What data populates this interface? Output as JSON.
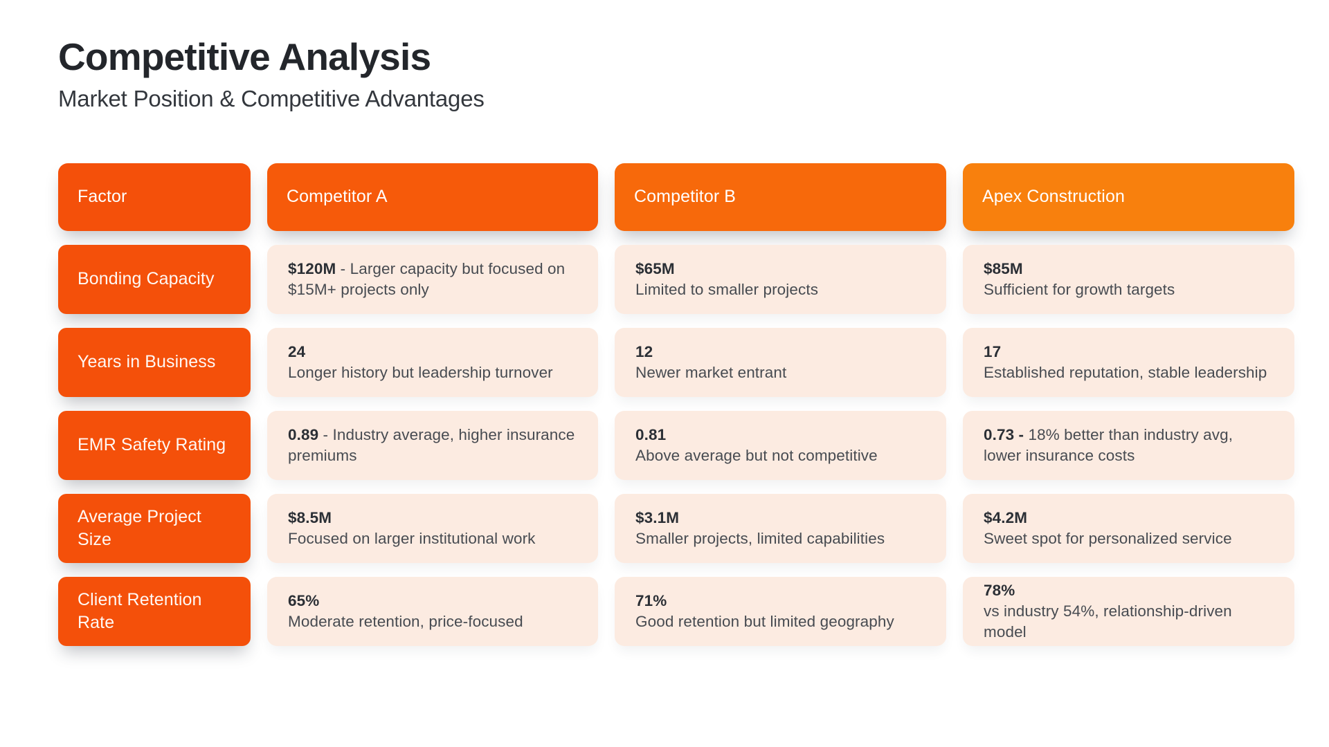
{
  "page": {
    "title": "Competitive Analysis",
    "subtitle": "Market Position & Competitive Advantages"
  },
  "colors": {
    "factor_pill": "#f4500a",
    "cell_bg": "#fcebe1",
    "header_text": "#ffffff"
  },
  "table": {
    "columns": [
      {
        "label": "Factor",
        "color": "#f4500a"
      },
      {
        "label": "Competitor A",
        "color": "#f65a0a"
      },
      {
        "label": "Competitor B",
        "color": "#f7690b"
      },
      {
        "label": "Apex Construction",
        "color": "#f8800d"
      }
    ],
    "rows": [
      {
        "factor": "Bonding Capacity",
        "cells": [
          {
            "value": "$120M",
            "sep": " - ",
            "desc": "Larger capacity but focused on $15M+ projects only"
          },
          {
            "value": "$65M",
            "desc": "Limited to smaller projects"
          },
          {
            "value": "$85M",
            "desc": "Sufficient for growth targets"
          }
        ]
      },
      {
        "factor": "Years in Business",
        "cells": [
          {
            "value": "24",
            "desc": "Longer history but leadership turnover"
          },
          {
            "value": "12",
            "desc": "Newer market entrant"
          },
          {
            "value": "17",
            "desc": "Established reputation, stable leadership"
          }
        ]
      },
      {
        "factor": "EMR Safety Rating",
        "cells": [
          {
            "value": "0.89",
            "sep": " - ",
            "desc": "Industry average, higher insurance premiums"
          },
          {
            "value": "0.81",
            "desc": "Above average but not competitive"
          },
          {
            "value": "0.73 -",
            "sep": " ",
            "desc": "18% better than industry avg, lower insurance costs"
          }
        ]
      },
      {
        "factor": "Average Project Size",
        "cells": [
          {
            "value": "$8.5M",
            "desc": "Focused on larger institutional work"
          },
          {
            "value": "$3.1M",
            "desc": "Smaller projects, limited capabilities"
          },
          {
            "value": "$4.2M",
            "desc": "Sweet spot for personalized service"
          }
        ]
      },
      {
        "factor": "Client Retention Rate",
        "cells": [
          {
            "value": "65%",
            "desc": "Moderate retention, price-focused"
          },
          {
            "value": "71%",
            "desc": "Good retention but limited geography"
          },
          {
            "value": "78%",
            "desc": "vs industry 54%, relationship-driven model"
          }
        ]
      }
    ]
  }
}
